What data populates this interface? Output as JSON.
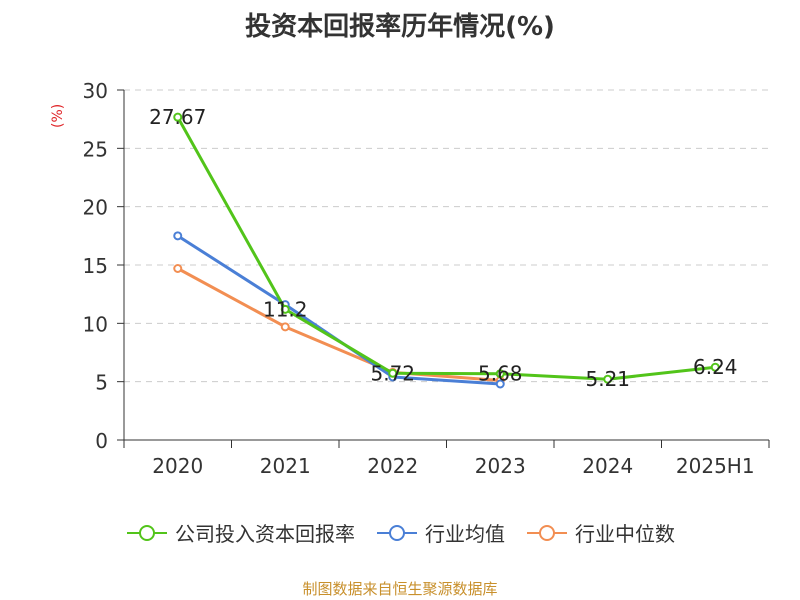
{
  "title": "投资本回报率历年情况(%)",
  "unit_label": "(%)",
  "source": "制图数据来自恒生聚源数据库",
  "colors": {
    "company": "#52c41a",
    "avg": "#4a7fd6",
    "median": "#f28e52",
    "unit": "#e0262a",
    "grid": "#cccccc",
    "axis": "#333333",
    "source": "#c8902c"
  },
  "chart_data": {
    "type": "line",
    "title": "投资本回报率历年情况(%)",
    "ylabel": "(%)",
    "ylim": [
      0,
      30
    ],
    "yticks": [
      0,
      5,
      10,
      15,
      20,
      25,
      30
    ],
    "grid": "horizontal dashed",
    "legend_position": "bottom",
    "categories": [
      "2020",
      "2021",
      "2022",
      "2023",
      "2024",
      "2025H1"
    ],
    "series": [
      {
        "name": "公司投入资本回报率",
        "values": [
          27.67,
          11.2,
          5.72,
          5.68,
          5.21,
          6.24
        ],
        "labels": [
          "27.67",
          "11.2",
          "5.72",
          "5.68",
          "5.21",
          "6.24"
        ]
      },
      {
        "name": "行业均值",
        "values": [
          17.5,
          11.6,
          5.4,
          4.8,
          null,
          null
        ]
      },
      {
        "name": "行业中位数",
        "values": [
          14.7,
          9.7,
          5.8,
          5.1,
          null,
          null
        ]
      }
    ]
  }
}
